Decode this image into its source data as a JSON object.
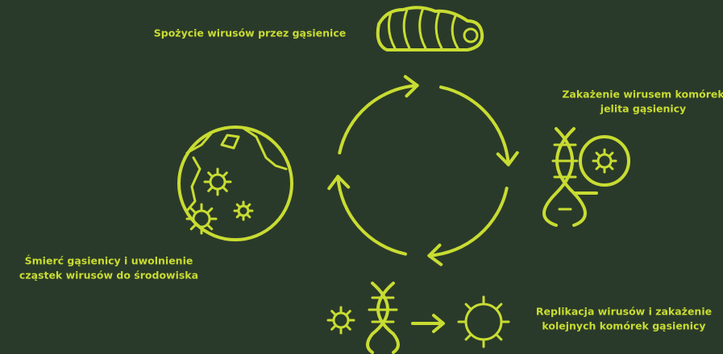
{
  "steps": [
    {
      "lines": [
        "Spożycie wirusów przez gąsienice"
      ]
    },
    {
      "lines": [
        "Zakażenie wirusem komórek",
        "jelita gąsienicy"
      ]
    },
    {
      "lines": [
        "Replikacja wirusów i zakażenie",
        "kolejnych komórek gąsienicy"
      ]
    },
    {
      "lines": [
        "Śmierć gąsienicy i uwolnienie",
        "cząstek wirusów do środowiska"
      ]
    }
  ]
}
